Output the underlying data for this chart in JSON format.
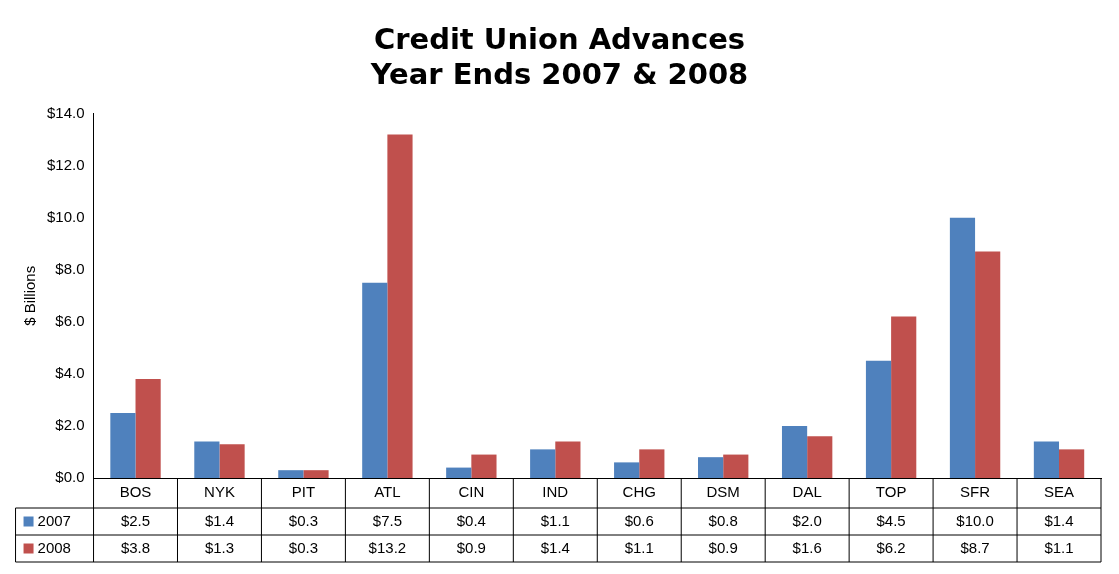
{
  "chart_data": {
    "type": "bar",
    "title": "Credit Union Advances\nYear Ends 2007 & 2008",
    "ylabel": "$ Billions",
    "categories": [
      "BOS",
      "NYK",
      "PIT",
      "ATL",
      "CIN",
      "IND",
      "CHG",
      "DSM",
      "DAL",
      "TOP",
      "SFR",
      "SEA"
    ],
    "series": [
      {
        "name": "2007",
        "color": "#4f81bd",
        "values": [
          2.5,
          1.4,
          0.3,
          7.5,
          0.4,
          1.1,
          0.6,
          0.8,
          2.0,
          4.5,
          10.0,
          1.4
        ],
        "value_labels": [
          "$2.5",
          "$1.4",
          "$0.3",
          "$7.5",
          "$0.4",
          "$1.1",
          "$0.6",
          "$0.8",
          "$2.0",
          "$4.5",
          "$10.0",
          "$1.4"
        ]
      },
      {
        "name": "2008",
        "color": "#c0504d",
        "values": [
          3.8,
          1.3,
          0.3,
          13.2,
          0.9,
          1.4,
          1.1,
          0.9,
          1.6,
          6.2,
          8.7,
          1.1
        ],
        "value_labels": [
          "$3.8",
          "$1.3",
          "$0.3",
          "$13.2",
          "$0.9",
          "$1.4",
          "$1.1",
          "$0.9",
          "$1.6",
          "$6.2",
          "$8.7",
          "$1.1"
        ]
      }
    ],
    "ylim": [
      0,
      14
    ],
    "yticks": [
      {
        "value": 0,
        "label": "$0.0"
      },
      {
        "value": 2,
        "label": "$2.0"
      },
      {
        "value": 4,
        "label": "$4.0"
      },
      {
        "value": 6,
        "label": "$6.0"
      },
      {
        "value": 8,
        "label": "$8.0"
      },
      {
        "value": 10,
        "label": "$10.0"
      },
      {
        "value": 12,
        "label": "$12.0"
      },
      {
        "value": 14,
        "label": "$14.0"
      }
    ],
    "grid": false,
    "legend": "bottom left"
  }
}
